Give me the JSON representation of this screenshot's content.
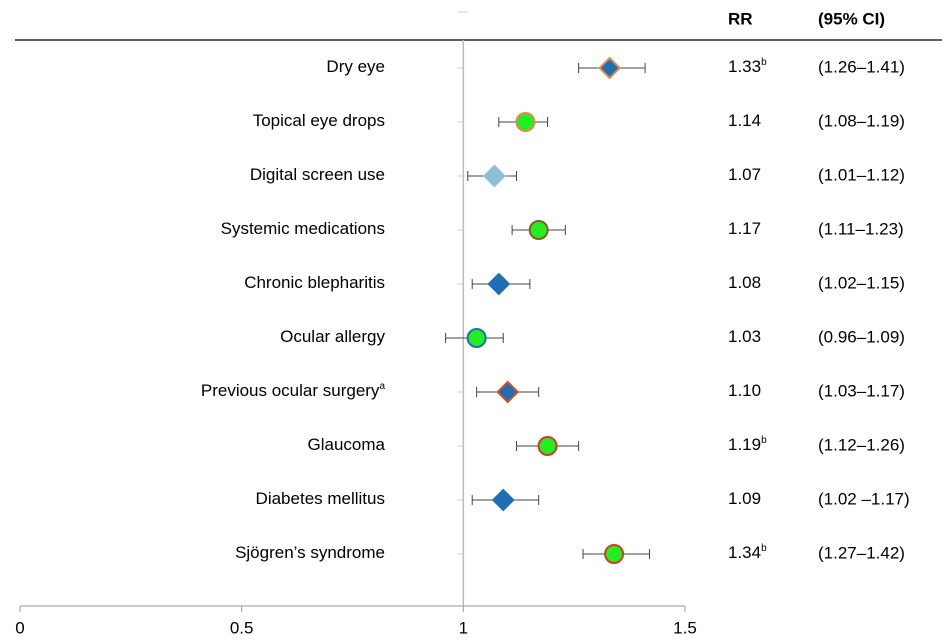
{
  "chart_data": {
    "type": "forest",
    "columns": [
      "RR",
      "(95% CI)"
    ],
    "categories": [
      "Dry eye",
      "Topical eye drops",
      "Digital screen use",
      "Systemic medications",
      "Chronic blepharitis",
      "Ocular allergy",
      "Previous ocular surgery",
      "Glaucoma",
      "Diabetes mellitus",
      "Sjögren’s syndrome"
    ],
    "category_notes": [
      null,
      null,
      null,
      null,
      null,
      null,
      "a",
      null,
      null,
      null
    ],
    "values": [
      1.33,
      1.14,
      1.07,
      1.17,
      1.08,
      1.03,
      1.1,
      1.19,
      1.09,
      1.34
    ],
    "value_labels": [
      "1.33",
      "1.14",
      "1.07",
      "1.17",
      "1.08",
      "1.03",
      "1.10",
      "1.19",
      "1.09",
      "1.34"
    ],
    "value_notes": [
      "b",
      null,
      null,
      null,
      null,
      null,
      null,
      "b",
      null,
      "b"
    ],
    "ci_low": [
      1.26,
      1.08,
      1.01,
      1.11,
      1.02,
      0.96,
      1.03,
      1.12,
      1.02,
      1.27
    ],
    "ci_high": [
      1.41,
      1.19,
      1.12,
      1.23,
      1.15,
      1.09,
      1.17,
      1.26,
      1.17,
      1.42
    ],
    "ci_labels": [
      "(1.26–1.41)",
      "(1.08–1.19)",
      "(1.01–1.12)",
      "(1.11–1.23)",
      "(1.02–1.15)",
      "(0.96–1.09)",
      "(1.03–1.17)",
      "(1.12–1.26)",
      "(1.02 –1.17)",
      "(1.27–1.42)"
    ],
    "shapes": [
      "diamond",
      "circle",
      "diamond",
      "circle",
      "diamond",
      "circle",
      "diamond",
      "circle",
      "diamond",
      "circle"
    ],
    "colors": [
      "#1f6fb5",
      "#22ee22",
      "#8cc0d8",
      "#22ee22",
      "#1f6fb5",
      "#22ee22",
      "#1f6fb5",
      "#22ee22",
      "#1f6fb5",
      "#22ee22"
    ],
    "edge_colors": [
      "#e8884a",
      "#e8884a",
      "#8cc0d8",
      "#8a5a2a",
      "#1f6fb5",
      "#1f6fb5",
      "#c8502a",
      "#d83a2a",
      "#1f6fb5",
      "#d83a2a"
    ],
    "reference": 1,
    "xlim": [
      0,
      1.5
    ],
    "xticks": [
      0,
      0.5,
      1,
      1.5
    ]
  }
}
